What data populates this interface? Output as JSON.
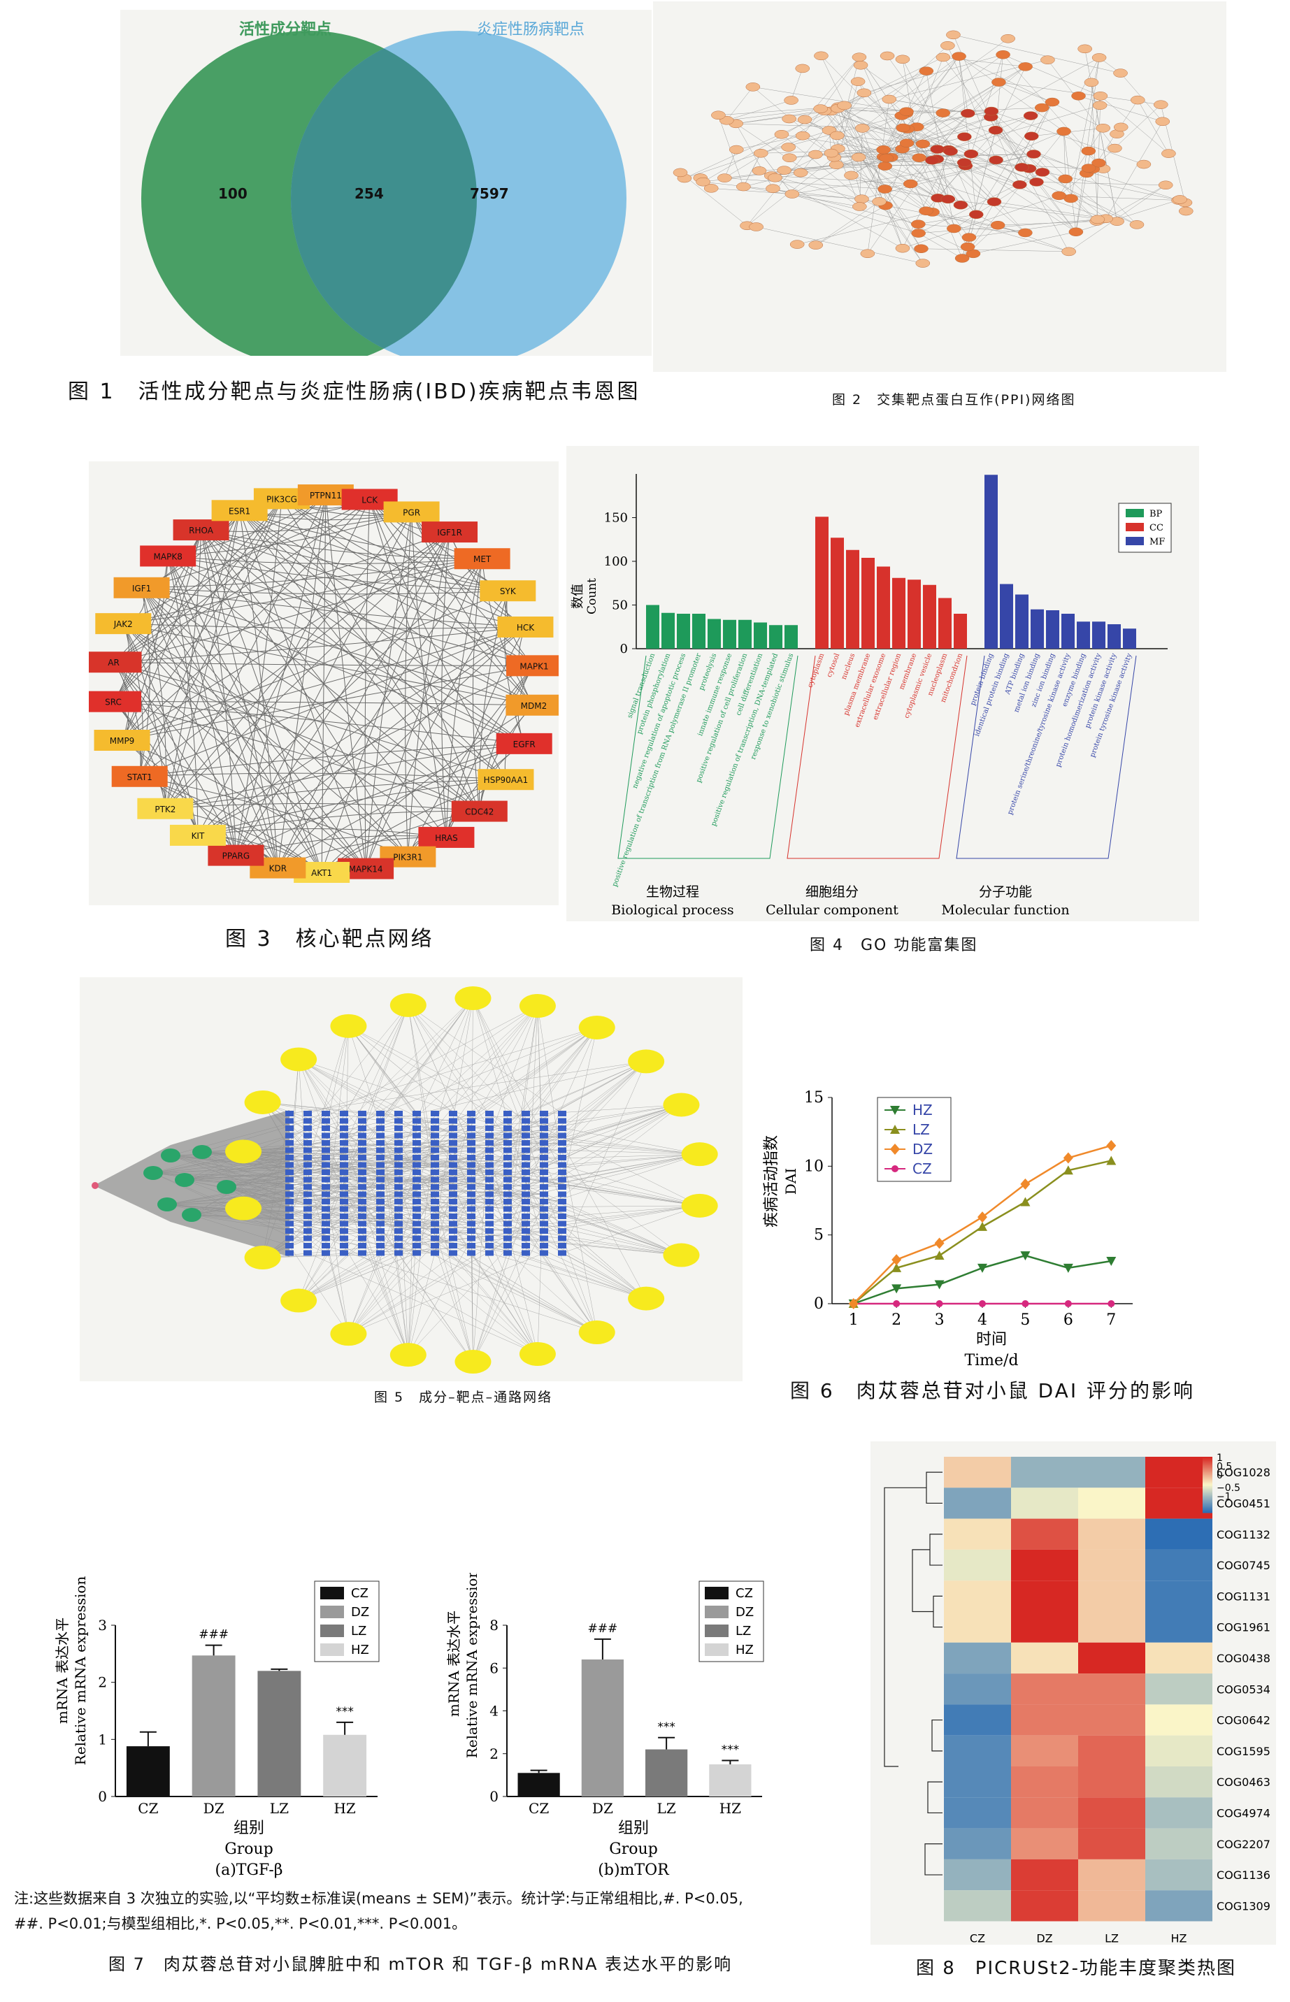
{
  "fig1": {
    "caption": "图 1　活性成分靶点与炎症性肠病(IBD)疾病靶点韦恩图",
    "label_left": "活性成分靶点",
    "label_right": "炎症性肠病靶点",
    "only_left": "100",
    "overlap": "254",
    "only_right": "7597",
    "colors": {
      "left": "#3f9a5d",
      "right": "#7fbfe3",
      "overlap": "#3f8f8e"
    }
  },
  "fig2": {
    "caption": "图 2　交集靶点蛋白互作(PPI)网络图"
  },
  "fig3": {
    "caption": "图 3　核心靶点网络",
    "nodes": [
      "PIK3CG",
      "PTPN11",
      "LCK",
      "PGR",
      "IGF1R",
      "MET",
      "SYK",
      "HCK",
      "MAPK1",
      "MDM2",
      "EGFR",
      "HSP90AA1",
      "CDC42",
      "HRAS",
      "PIK3R1",
      "MAPK14",
      "AKT1",
      "KDR",
      "PPARG",
      "KIT",
      "PTK2",
      "STAT1",
      "MMP9",
      "SRC",
      "AR",
      "JAK2",
      "IGF1",
      "MAPK8",
      "RHOA",
      "ESR1"
    ]
  },
  "fig4": {
    "caption": "图 4　GO 功能富集图",
    "ylabel_cn": "数值",
    "ylabel_en": "Count",
    "groups": [
      {
        "cn": "生物过程",
        "en": "Biological process"
      },
      {
        "cn": "细胞组分",
        "en": "Cellular component"
      },
      {
        "cn": "分子功能",
        "en": "Molecular function"
      }
    ],
    "legend": [
      "BP",
      "CC",
      "MF"
    ],
    "colors": {
      "BP": "#1e9a5a",
      "CC": "#d7322c",
      "MF": "#3646a8"
    }
  },
  "fig5": {
    "caption": "图 5　成分–靶点–通路网络"
  },
  "fig6": {
    "caption": "图 6　肉苁蓉总苷对小鼠 DAI 评分的影响",
    "ylabel_cn": "疾病活动指数",
    "ylabel_en": "DAI",
    "xlabel_cn": "时间",
    "xlabel_en": "Time/d"
  },
  "fig7": {
    "caption": "图 7　肉苁蓉总苷对小鼠脾脏中和 mTOR 和 TGF-β mRNA 表达水平的影响",
    "note_line1": "注:这些数据来自 3 次独立的实验,以“平均数±标准误(means ± SEM)”表示。统计学:与正常组相比,#. P<0.05,",
    "note_line2": "##. P<0.01;与模型组相比,*. P<0.05,**. P<0.01,***. P<0.001。",
    "ylabel_cn": "mRNA 表达水平",
    "ylabel_en": "Relative mRNA expression",
    "xlabel_cn": "组别",
    "xlabel_en": "Group",
    "sub_a": "(a)TGF-β",
    "sub_b": "(b)mTOR"
  },
  "fig8": {
    "caption": "图 8　PICRUSt2-功能丰度聚类热图",
    "rows": [
      "COG1028",
      "COG0451",
      "COG1132",
      "COG0745",
      "COG1131",
      "COG1961",
      "COG0438",
      "COG0534",
      "COG0642",
      "COG1595",
      "COG0463",
      "COG4974",
      "COG2207",
      "COG1136",
      "COG1309"
    ],
    "cols": [
      "CZ",
      "DZ",
      "LZ",
      "HZ"
    ],
    "scale_labels": [
      "1",
      "0.5",
      "0",
      "−0.5",
      "−1"
    ]
  },
  "chart_data": [
    {
      "type": "bar",
      "id": "go-enrichment",
      "ylabel": "数值 Count",
      "ylim": [
        0,
        200
      ],
      "yticks": [
        0,
        50,
        100,
        150
      ],
      "series": [
        {
          "name": "BP",
          "categories": [
            "signal transduction",
            "protein phosphorylation",
            "negative regulation of apoptotic process",
            "positive regulation of transcription from RNA polymerase II promoter",
            "proteolysis",
            "innate immune response",
            "positive regulation of cell proliferation",
            "cell differentiation",
            "positive regulation of transcription, DNA-templated",
            "response to xenobiotic stimulus"
          ],
          "values": [
            50,
            41,
            40,
            40,
            34,
            33,
            33,
            30,
            27,
            27
          ]
        },
        {
          "name": "CC",
          "categories": [
            "cytoplasm",
            "cytosol",
            "nucleus",
            "plasma membrane",
            "extracellular exosome",
            "extracellular region",
            "membrane",
            "cytoplasmic vesicle",
            "nucleoplasm",
            "mitochondrion"
          ],
          "values": [
            151,
            127,
            113,
            104,
            94,
            81,
            79,
            73,
            58,
            40
          ]
        },
        {
          "name": "MF",
          "categories": [
            "protein binding",
            "identical protein binding",
            "ATP binding",
            "metal ion binding",
            "zinc ion binding",
            "protein serine/threonine/tyrosine kinase activity",
            "enzyme binding",
            "protein homodimerization activity",
            "protein kinase activity",
            "protein tyrosine kinase activity"
          ],
          "values": [
            199,
            74,
            62,
            45,
            44,
            40,
            31,
            31,
            28,
            23
          ]
        }
      ]
    },
    {
      "type": "line",
      "id": "dai-score",
      "xlabel": "时间 Time/d",
      "ylabel": "疾病活动指数 DAI",
      "x": [
        1,
        2,
        3,
        4,
        5,
        6,
        7
      ],
      "ylim": [
        0,
        15
      ],
      "yticks": [
        0,
        5,
        10,
        15
      ],
      "series": [
        {
          "name": "HZ",
          "values": [
            0,
            1.1,
            1.4,
            2.6,
            3.5,
            2.6,
            3.1
          ],
          "color": "#2e7d32",
          "marker": "triangle-down"
        },
        {
          "name": "LZ",
          "values": [
            0,
            2.6,
            3.5,
            5.6,
            7.4,
            9.7,
            10.4
          ],
          "color": "#8a8f1e",
          "marker": "triangle-up"
        },
        {
          "name": "DZ",
          "values": [
            0,
            3.2,
            4.4,
            6.3,
            8.7,
            10.6,
            11.5
          ],
          "color": "#f0892a",
          "marker": "diamond"
        },
        {
          "name": "CZ",
          "values": [
            0,
            0,
            0,
            0,
            0,
            0,
            0
          ],
          "color": "#d6287e",
          "marker": "circle"
        }
      ]
    },
    {
      "type": "bar",
      "id": "tgf-beta",
      "title": "(a)TGF-β",
      "categories": [
        "CZ",
        "DZ",
        "LZ",
        "HZ"
      ],
      "values": [
        0.88,
        2.47,
        2.2,
        1.08
      ],
      "errors": [
        0.25,
        0.18,
        0.03,
        0.22
      ],
      "annotations": [
        "",
        "###",
        "",
        "***"
      ],
      "ylim": [
        0,
        3
      ],
      "yticks": [
        0,
        1,
        2,
        3
      ],
      "colors": [
        "#111111",
        "#9a9a9a",
        "#7a7a7a",
        "#d4d4d4"
      ]
    },
    {
      "type": "bar",
      "id": "mtor",
      "title": "(b)mTOR",
      "categories": [
        "CZ",
        "DZ",
        "LZ",
        "HZ"
      ],
      "values": [
        1.1,
        6.4,
        2.2,
        1.5
      ],
      "errors": [
        0.12,
        0.95,
        0.55,
        0.18
      ],
      "annotations": [
        "",
        "###",
        "***",
        "***"
      ],
      "ylim": [
        0,
        8
      ],
      "yticks": [
        0,
        2,
        4,
        6,
        8
      ],
      "colors": [
        "#111111",
        "#9a9a9a",
        "#7a7a7a",
        "#d4d4d4"
      ]
    },
    {
      "type": "heatmap",
      "id": "picrust2",
      "rows": [
        "COG1028",
        "COG0451",
        "COG1132",
        "COG0745",
        "COG1131",
        "COG1961",
        "COG0438",
        "COG0534",
        "COG0642",
        "COG1595",
        "COG0463",
        "COG4974",
        "COG2207",
        "COG1136",
        "COG1309"
      ],
      "cols": [
        "CZ",
        "DZ",
        "LZ",
        "HZ"
      ],
      "values": [
        [
          0.2,
          -0.5,
          -0.5,
          1.0
        ],
        [
          -0.6,
          -0.1,
          0.0,
          1.0
        ],
        [
          0.1,
          0.8,
          0.2,
          -1.0
        ],
        [
          -0.1,
          1.0,
          0.2,
          -0.9
        ],
        [
          0.1,
          1.0,
          0.2,
          -0.9
        ],
        [
          0.1,
          1.0,
          0.2,
          -0.9
        ],
        [
          -0.6,
          0.1,
          1.1,
          0.1
        ],
        [
          -0.7,
          0.6,
          0.6,
          -0.3
        ],
        [
          -0.9,
          0.6,
          0.6,
          0.0
        ],
        [
          -0.8,
          0.5,
          0.7,
          -0.1
        ],
        [
          -0.8,
          0.6,
          0.7,
          -0.2
        ],
        [
          -0.8,
          0.6,
          0.8,
          -0.4
        ],
        [
          -0.7,
          0.5,
          0.8,
          -0.3
        ],
        [
          -0.5,
          0.9,
          0.3,
          -0.4
        ],
        [
          -0.3,
          0.9,
          0.3,
          -0.6
        ]
      ],
      "scale": [
        -1,
        1
      ]
    }
  ]
}
